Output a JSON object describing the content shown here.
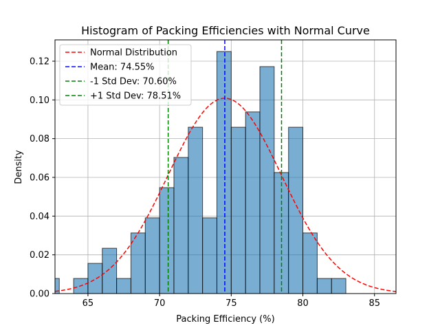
{
  "chart_data": {
    "type": "bar",
    "title": "Histogram of Packing Efficiencies with Normal Curve",
    "xlabel": "Packing Efficiency (%)",
    "ylabel": "Density",
    "xlim": [
      62.7,
      86.5
    ],
    "ylim": [
      0,
      0.131
    ],
    "grid": true,
    "legend_position": "top-left",
    "x_ticks": [
      65,
      70,
      75,
      80,
      85
    ],
    "y_ticks": [
      0.0,
      0.02,
      0.04,
      0.06,
      0.08,
      0.1,
      0.12
    ],
    "histogram": {
      "name": "Packing efficiency",
      "color": "#1f77b4",
      "bins": [
        {
          "x0": 62.0,
          "x1": 63.0,
          "density": 0.0078
        },
        {
          "x0": 64.0,
          "x1": 65.0,
          "density": 0.0078
        },
        {
          "x0": 65.0,
          "x1": 66.0,
          "density": 0.0156
        },
        {
          "x0": 66.0,
          "x1": 67.0,
          "density": 0.0234
        },
        {
          "x0": 67.0,
          "x1": 68.0,
          "density": 0.0078
        },
        {
          "x0": 68.0,
          "x1": 69.0,
          "density": 0.0313
        },
        {
          "x0": 69.0,
          "x1": 70.0,
          "density": 0.0391
        },
        {
          "x0": 70.0,
          "x1": 71.0,
          "density": 0.0547
        },
        {
          "x0": 71.0,
          "x1": 72.0,
          "density": 0.0703
        },
        {
          "x0": 72.0,
          "x1": 73.0,
          "density": 0.0859
        },
        {
          "x0": 73.0,
          "x1": 74.0,
          "density": 0.0391
        },
        {
          "x0": 74.0,
          "x1": 75.0,
          "density": 0.125
        },
        {
          "x0": 75.0,
          "x1": 76.0,
          "density": 0.0859
        },
        {
          "x0": 76.0,
          "x1": 77.0,
          "density": 0.0938
        },
        {
          "x0": 77.0,
          "x1": 78.0,
          "density": 0.1172
        },
        {
          "x0": 78.0,
          "x1": 79.0,
          "density": 0.0625
        },
        {
          "x0": 79.0,
          "x1": 80.0,
          "density": 0.0859
        },
        {
          "x0": 80.0,
          "x1": 81.0,
          "density": 0.0313
        },
        {
          "x0": 81.0,
          "x1": 82.0,
          "density": 0.0078
        },
        {
          "x0": 82.0,
          "x1": 83.0,
          "density": 0.0078
        }
      ]
    },
    "normal_curve": {
      "name": "Normal Distribution",
      "mean": 74.55,
      "std": 3.955,
      "color": "#ff0000",
      "style": "dashed"
    },
    "vertical_lines": [
      {
        "name": "Mean: 74.55%",
        "x": 74.55,
        "color": "#0000ff",
        "style": "dashed"
      },
      {
        "name": "-1 Std Dev: 70.60%",
        "x": 70.6,
        "color": "#008000",
        "style": "dashed"
      },
      {
        "name": "+1 Std Dev: 78.51%",
        "x": 78.51,
        "color": "#008000",
        "style": "dashed"
      }
    ]
  }
}
